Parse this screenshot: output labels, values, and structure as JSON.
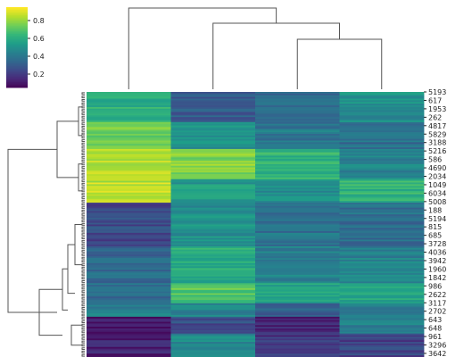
{
  "chart_data": {
    "type": "heatmap",
    "title": "",
    "xlabel": "",
    "ylabel": "",
    "columns": 4,
    "row_labels": [
      "5193",
      "617",
      "1953",
      "262",
      "4817",
      "5829",
      "3188",
      "5216",
      "586",
      "4690",
      "2034",
      "1049",
      "6034",
      "5008",
      "188",
      "5194",
      "815",
      "685",
      "3728",
      "4036",
      "3942",
      "1960",
      "1842",
      "986",
      "2622",
      "3117",
      "2702",
      "643",
      "648",
      "961",
      "3296",
      "3642"
    ],
    "colorbar": {
      "ticks": [
        0.2,
        0.4,
        0.6,
        0.8
      ],
      "range": [
        0.05,
        0.95
      ],
      "colormap": "viridis",
      "colors": [
        "#440154",
        "#482878",
        "#3e4a89",
        "#31688e",
        "#26828e",
        "#1f9e89",
        "#35b779",
        "#6ece58",
        "#b5de2b",
        "#fde725"
      ]
    },
    "cluster_means": [
      {
        "rows": 18,
        "values": [
          0.62,
          0.28,
          0.34,
          0.5
        ]
      },
      {
        "rows": 16,
        "values": [
          0.78,
          0.5,
          0.4,
          0.36
        ]
      },
      {
        "rows": 18,
        "values": [
          0.9,
          0.82,
          0.64,
          0.44
        ]
      },
      {
        "rows": 14,
        "values": [
          0.9,
          0.54,
          0.5,
          0.64
        ]
      },
      {
        "rows": 26,
        "values": [
          0.22,
          0.5,
          0.38,
          0.36
        ]
      },
      {
        "rows": 22,
        "values": [
          0.34,
          0.62,
          0.44,
          0.44
        ]
      },
      {
        "rows": 12,
        "values": [
          0.36,
          0.74,
          0.56,
          0.6
        ]
      },
      {
        "rows": 8,
        "values": [
          0.44,
          0.46,
          0.3,
          0.4
        ]
      },
      {
        "rows": 10,
        "values": [
          0.06,
          0.24,
          0.1,
          0.42
        ]
      },
      {
        "rows": 14,
        "values": [
          0.08,
          0.46,
          0.16,
          0.2
        ]
      }
    ]
  }
}
